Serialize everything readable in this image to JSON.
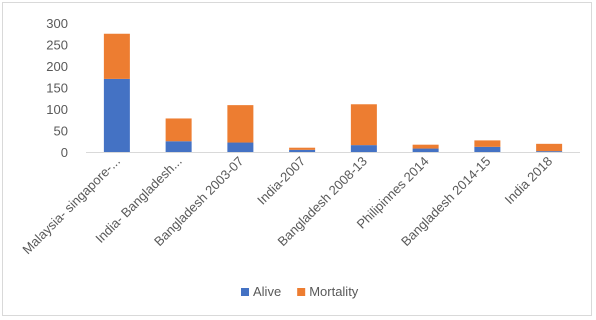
{
  "chart_data": {
    "type": "bar",
    "stacked": true,
    "categories": [
      "Malaysia- singapore-...",
      "India- Bangladesh...",
      "Bangladesh 2003-07",
      "India-2007",
      "Bangladesh 2008-13",
      "Philipinnes 2014",
      "Bangladesh 2014-15",
      "India 2018"
    ],
    "series": [
      {
        "name": "Alive",
        "color": "#4472c4",
        "values": [
          170,
          25,
          22,
          5,
          16,
          8,
          12,
          2
        ]
      },
      {
        "name": "Mortality",
        "color": "#ed7d31",
        "values": [
          105,
          53,
          87,
          5,
          95,
          9,
          15,
          17
        ]
      }
    ],
    "ylim": [
      0,
      300
    ],
    "yticks": [
      "0",
      "50",
      "100",
      "150",
      "200",
      "250",
      "300"
    ],
    "grid": false,
    "legend_position": "bottom",
    "title": "",
    "xlabel": "",
    "ylabel": ""
  }
}
